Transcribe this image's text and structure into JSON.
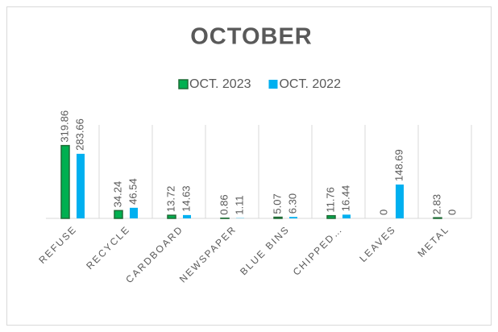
{
  "chart_data": {
    "type": "bar",
    "title": "OCTOBER",
    "categories": [
      "REFUSE",
      "RECYCLE",
      "CARDBOARD",
      "NEWSPAPER",
      "BLUE BINS",
      "CHIPPED…",
      "LEAVES",
      "METAL"
    ],
    "series": [
      {
        "name": "OCT. 2023",
        "color": "#00b050",
        "values": [
          319.86,
          34.24,
          13.72,
          0.86,
          5.07,
          11.76,
          0,
          2.83
        ],
        "value_labels": [
          "319.86",
          "34.24",
          "13.72",
          "0.86",
          "5.07",
          "11.76",
          "0",
          "2.83"
        ]
      },
      {
        "name": "OCT. 2022",
        "color": "#00b0f0",
        "values": [
          283.66,
          46.54,
          14.63,
          1.11,
          6.3,
          16.44,
          148.69,
          0
        ],
        "value_labels": [
          "283.66",
          "46.54",
          "14.63",
          "1.11",
          "6.30",
          "16.44",
          "148.69",
          "0"
        ]
      }
    ],
    "ylim": [
      0,
      400
    ],
    "legend": "top"
  }
}
